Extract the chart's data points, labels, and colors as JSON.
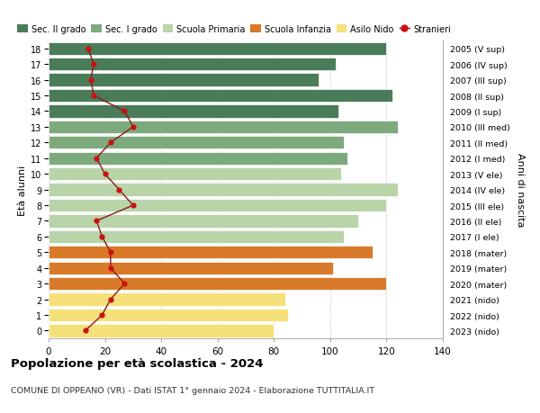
{
  "ages": [
    0,
    1,
    2,
    3,
    4,
    5,
    6,
    7,
    8,
    9,
    10,
    11,
    12,
    13,
    14,
    15,
    16,
    17,
    18
  ],
  "anni_nascita": [
    "2023 (nido)",
    "2022 (nido)",
    "2021 (nido)",
    "2020 (mater)",
    "2019 (mater)",
    "2018 (mater)",
    "2017 (I ele)",
    "2016 (II ele)",
    "2015 (III ele)",
    "2014 (IV ele)",
    "2013 (V ele)",
    "2012 (I med)",
    "2011 (II med)",
    "2010 (III med)",
    "2009 (I sup)",
    "2008 (II sup)",
    "2007 (III sup)",
    "2006 (IV sup)",
    "2005 (V sup)"
  ],
  "bar_values": [
    80,
    85,
    84,
    120,
    101,
    115,
    105,
    110,
    120,
    124,
    104,
    106,
    105,
    124,
    103,
    122,
    96,
    102,
    120
  ],
  "bar_colors": [
    "#f5e07a",
    "#f5e07a",
    "#f5e07a",
    "#d97a2a",
    "#d97a2a",
    "#d97a2a",
    "#b8d4a8",
    "#b8d4a8",
    "#b8d4a8",
    "#b8d4a8",
    "#b8d4a8",
    "#7daa7d",
    "#7daa7d",
    "#7daa7d",
    "#4a7c59",
    "#4a7c59",
    "#4a7c59",
    "#4a7c59",
    "#4a7c59"
  ],
  "stranieri_values": [
    13,
    19,
    22,
    27,
    22,
    22,
    19,
    17,
    30,
    25,
    20,
    17,
    22,
    30,
    27,
    16,
    15,
    16,
    14
  ],
  "legend_labels": [
    "Sec. II grado",
    "Sec. I grado",
    "Scuola Primaria",
    "Scuola Infanzia",
    "Asilo Nido",
    "Stranieri"
  ],
  "legend_colors": [
    "#4a7c59",
    "#7daa7d",
    "#b8d4a8",
    "#d97a2a",
    "#f5e07a",
    "#cc1111"
  ],
  "ylabel_left": "Età alunni",
  "ylabel_right": "Anni di nascita",
  "title": "Popolazione per età scolastica - 2024",
  "subtitle": "COMUNE DI OPPEANO (VR) - Dati ISTAT 1° gennaio 2024 - Elaborazione TUTTITALIA.IT",
  "xlim": [
    0,
    140
  ],
  "xticks": [
    0,
    20,
    40,
    60,
    80,
    100,
    120,
    140
  ],
  "bg_color": "#ffffff",
  "grid_color": "#cccccc",
  "bar_height": 0.82,
  "line_color": "#8b1a1a",
  "marker_color": "#cc1111"
}
